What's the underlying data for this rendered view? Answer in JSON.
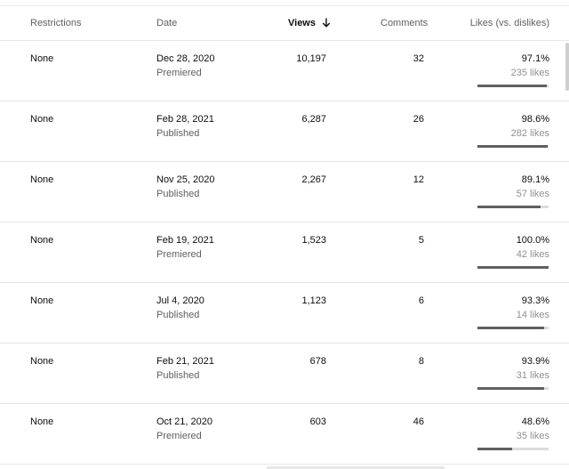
{
  "columns": {
    "restrictions": "Restrictions",
    "date": "Date",
    "views": "Views",
    "comments": "Comments",
    "likes": "Likes (vs. dislikes)"
  },
  "sort": {
    "column": "views",
    "direction": "descending",
    "icon": "arrow-down-icon"
  },
  "colors": {
    "bar_fill": "#606060",
    "bar_track": "#dcdcdc"
  },
  "rows": [
    {
      "restriction": "None",
      "date": "Dec 28, 2020",
      "status": "Premiered",
      "views": "10,197",
      "comments": "32",
      "likes_pct": "97.1%",
      "likes_count": "235 likes",
      "ratio": 0.971
    },
    {
      "restriction": "None",
      "date": "Feb 28, 2021",
      "status": "Published",
      "views": "6,287",
      "comments": "26",
      "likes_pct": "98.6%",
      "likes_count": "282 likes",
      "ratio": 0.986
    },
    {
      "restriction": "None",
      "date": "Nov 25, 2020",
      "status": "Published",
      "views": "2,267",
      "comments": "12",
      "likes_pct": "89.1%",
      "likes_count": "57 likes",
      "ratio": 0.891
    },
    {
      "restriction": "None",
      "date": "Feb 19, 2021",
      "status": "Premiered",
      "views": "1,523",
      "comments": "5",
      "likes_pct": "100.0%",
      "likes_count": "42 likes",
      "ratio": 1.0
    },
    {
      "restriction": "None",
      "date": "Jul 4, 2020",
      "status": "Published",
      "views": "1,123",
      "comments": "6",
      "likes_pct": "93.3%",
      "likes_count": "14 likes",
      "ratio": 0.933
    },
    {
      "restriction": "None",
      "date": "Feb 21, 2021",
      "status": "Published",
      "views": "678",
      "comments": "8",
      "likes_pct": "93.9%",
      "likes_count": "31 likes",
      "ratio": 0.939
    },
    {
      "restriction": "None",
      "date": "Oct 21, 2020",
      "status": "Premiered",
      "views": "603",
      "comments": "46",
      "likes_pct": "48.6%",
      "likes_count": "35 likes",
      "ratio": 0.486
    }
  ]
}
